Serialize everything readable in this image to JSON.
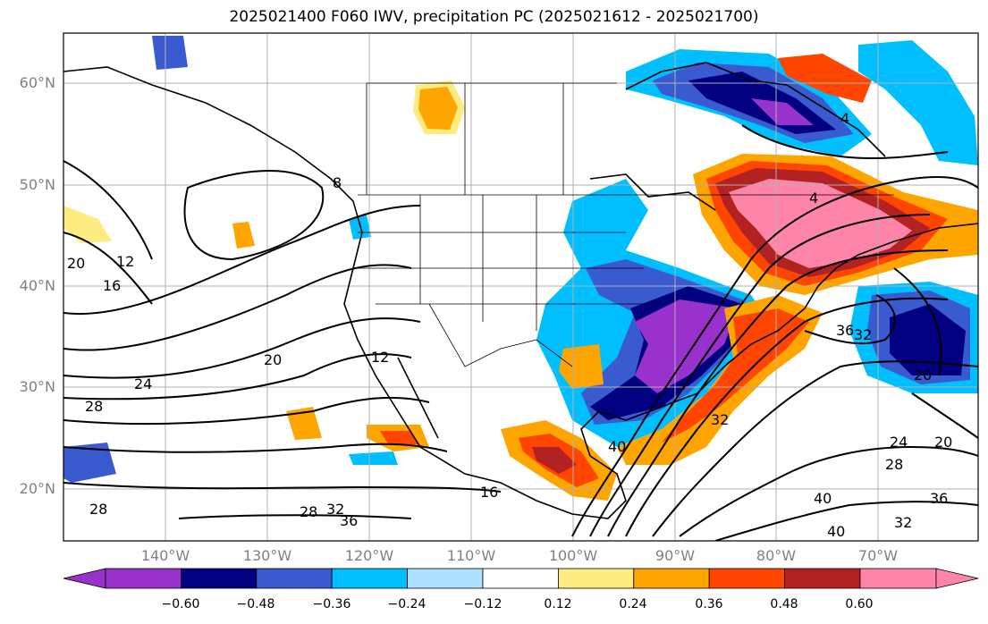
{
  "title": "2025021400 F060 IWV, precipitation PC (2025021612 - 2025021700)",
  "lat_labels": [
    "60°N",
    "50°N",
    "40°N",
    "30°N",
    "20°N"
  ],
  "lon_labels": [
    "140°W",
    "130°W",
    "120°W",
    "110°W",
    "100°W",
    "90°W",
    "80°W",
    "70°W"
  ],
  "contour_labels": [
    "4",
    "4",
    "8",
    "12",
    "12",
    "16",
    "16",
    "20",
    "20",
    "20",
    "20",
    "24",
    "24",
    "28",
    "28",
    "28",
    "28",
    "32",
    "32",
    "32",
    "32",
    "36",
    "36",
    "36",
    "40",
    "40",
    "40"
  ],
  "colorbar": {
    "tick_labels": [
      "−0.60",
      "−0.48",
      "−0.36",
      "−0.24",
      "−0.12",
      "0.12",
      "0.24",
      "0.36",
      "0.48",
      "0.60"
    ],
    "colors": [
      "#9932cc",
      "#000080",
      "#3a5bd0",
      "#00bfff",
      "#b0e0ff",
      "#ffffff",
      "#ffec80",
      "#ffa500",
      "#ff4500",
      "#b22222",
      "#ff85a8"
    ]
  }
}
